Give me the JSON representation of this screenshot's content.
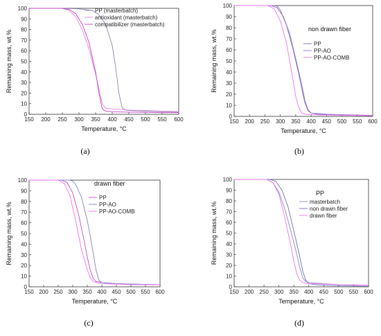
{
  "chart_data": [
    {
      "panel": "(a)",
      "type": "line",
      "xlabel": "Temperature, °C",
      "ylabel": "Remaining mass, wt.%",
      "xlim": [
        150,
        600
      ],
      "ylim": [
        0,
        100
      ],
      "xticks": [
        150,
        200,
        250,
        300,
        350,
        400,
        450,
        500,
        550,
        600
      ],
      "yticks": [
        0,
        10,
        20,
        30,
        40,
        50,
        60,
        70,
        80,
        90,
        100
      ],
      "legend_title": "",
      "legend_position": "top-right",
      "series": [
        {
          "name": "PP (masterbatch)",
          "color": "#8a8ab8",
          "x": [
            150,
            250,
            300,
            340,
            360,
            380,
            400,
            410,
            420,
            430,
            440,
            450,
            500,
            550,
            600
          ],
          "y": [
            100,
            100,
            99.5,
            98,
            94,
            85,
            65,
            45,
            20,
            6,
            4,
            3.5,
            3,
            2.5,
            2
          ]
        },
        {
          "name": "antioxidant (masterbatch)",
          "color": "#e080e0",
          "x": [
            150,
            250,
            270,
            290,
            310,
            330,
            350,
            370,
            380,
            400,
            450,
            500,
            550,
            600
          ],
          "y": [
            100,
            100,
            98,
            92,
            80,
            62,
            38,
            10,
            6,
            5,
            4,
            3.5,
            3,
            2.5
          ]
        },
        {
          "name": "compatibilizer (masterbatch)",
          "color": "#c040c0",
          "x": [
            150,
            250,
            270,
            290,
            310,
            330,
            350,
            360,
            370,
            380,
            400,
            450,
            500,
            550,
            600
          ],
          "y": [
            100,
            100,
            99,
            95,
            85,
            68,
            40,
            20,
            5,
            3,
            2.5,
            2,
            1.8,
            1.5,
            1.5
          ]
        }
      ]
    },
    {
      "panel": "(b)",
      "type": "line",
      "xlabel": "Temperature, °C",
      "ylabel": "Remaining mass, wt.%",
      "xlim": [
        150,
        600
      ],
      "ylim": [
        0,
        100
      ],
      "xticks": [
        150,
        200,
        250,
        300,
        350,
        400,
        450,
        500,
        550,
        600
      ],
      "yticks": [
        0,
        10,
        20,
        30,
        40,
        50,
        60,
        70,
        80,
        90,
        100
      ],
      "legend_title": "non drawn fiber",
      "legend_position": "right",
      "series": [
        {
          "name": "PP",
          "color": "#7070b8",
          "x": [
            150,
            270,
            290,
            310,
            330,
            350,
            370,
            380,
            390,
            400,
            420,
            450,
            500,
            600
          ],
          "y": [
            100,
            100,
            98,
            90,
            75,
            52,
            28,
            14,
            6,
            3,
            2,
            1.5,
            1,
            0.5
          ]
        },
        {
          "name": "PP-AO",
          "color": "#9a70c8",
          "x": [
            150,
            280,
            290,
            300,
            320,
            340,
            360,
            370,
            380,
            390,
            400,
            450,
            500,
            600
          ],
          "y": [
            100,
            100,
            99.5,
            96,
            82,
            62,
            38,
            24,
            12,
            5,
            3,
            2,
            1.5,
            1
          ]
        },
        {
          "name": "PP-AO-COMB",
          "color": "#f070f0",
          "x": [
            150,
            260,
            280,
            300,
            320,
            340,
            350,
            360,
            370,
            380,
            400,
            450,
            500,
            600
          ],
          "y": [
            100,
            100,
            97,
            86,
            66,
            35,
            18,
            8,
            3,
            2,
            1.5,
            1.2,
            1,
            0.8
          ]
        }
      ]
    },
    {
      "panel": "(c)",
      "type": "line",
      "xlabel": "Temperature, °C",
      "ylabel": "Remaining mass, wt.%",
      "xlim": [
        150,
        600
      ],
      "ylim": [
        0,
        100
      ],
      "xticks": [
        150,
        200,
        250,
        300,
        350,
        400,
        450,
        500,
        550,
        600
      ],
      "yticks": [
        0,
        10,
        20,
        30,
        40,
        50,
        60,
        70,
        80,
        90,
        100
      ],
      "legend_title": "drawn fiber",
      "legend_position": "right",
      "series": [
        {
          "name": "PP",
          "color": "#c050c0",
          "x": [
            150,
            260,
            280,
            300,
            320,
            340,
            350,
            360,
            370,
            380,
            400,
            450,
            500,
            600
          ],
          "y": [
            100,
            100,
            98,
            88,
            68,
            42,
            28,
            16,
            8,
            5,
            4,
            3,
            2.5,
            2
          ]
        },
        {
          "name": "PP-AO",
          "color": "#8080c8",
          "x": [
            150,
            290,
            300,
            310,
            330,
            350,
            360,
            370,
            380,
            390,
            400,
            450,
            500,
            600
          ],
          "y": [
            100,
            100,
            99,
            96,
            84,
            62,
            48,
            32,
            16,
            6,
            4,
            3,
            2.5,
            2
          ]
        },
        {
          "name": "PP-AO-COMB",
          "color": "#f070f0",
          "x": [
            150,
            250,
            270,
            290,
            310,
            330,
            350,
            360,
            370,
            380,
            400,
            450,
            500,
            600
          ],
          "y": [
            100,
            100,
            97,
            86,
            62,
            35,
            16,
            9,
            5,
            4,
            3,
            2.5,
            2,
            2
          ]
        }
      ]
    },
    {
      "panel": "(d)",
      "type": "line",
      "xlabel": "Temperature, °C",
      "ylabel": "Remaining mass, wt.%",
      "xlim": [
        150,
        600
      ],
      "ylim": [
        0,
        100
      ],
      "xticks": [
        150,
        200,
        250,
        300,
        350,
        400,
        450,
        500,
        550,
        600
      ],
      "yticks": [
        0,
        10,
        20,
        30,
        40,
        50,
        60,
        70,
        80,
        90,
        100
      ],
      "legend_title": "PP",
      "legend_position": "right",
      "series": [
        {
          "name": "masterbatch",
          "color": "#8a8ab8",
          "x": [
            150,
            260,
            280,
            300,
            320,
            340,
            360,
            370,
            380,
            390,
            400,
            450,
            500,
            600
          ],
          "y": [
            100,
            100,
            97,
            88,
            72,
            52,
            30,
            18,
            8,
            5,
            4,
            3,
            2,
            1.5
          ]
        },
        {
          "name": "non drawn fiber",
          "color": "#7070b8",
          "x": [
            150,
            270,
            290,
            310,
            330,
            350,
            370,
            380,
            390,
            400,
            420,
            450,
            500,
            600
          ],
          "y": [
            100,
            100,
            98,
            90,
            75,
            52,
            28,
            14,
            6,
            3,
            2,
            1.5,
            1,
            0.5
          ]
        },
        {
          "name": "drawn fiber",
          "color": "#f070f0",
          "x": [
            150,
            260,
            280,
            300,
            320,
            340,
            350,
            360,
            370,
            380,
            400,
            450,
            500,
            600
          ],
          "y": [
            100,
            100,
            97,
            86,
            64,
            38,
            24,
            12,
            6,
            4,
            3,
            2.5,
            2,
            1.5
          ]
        }
      ]
    }
  ]
}
